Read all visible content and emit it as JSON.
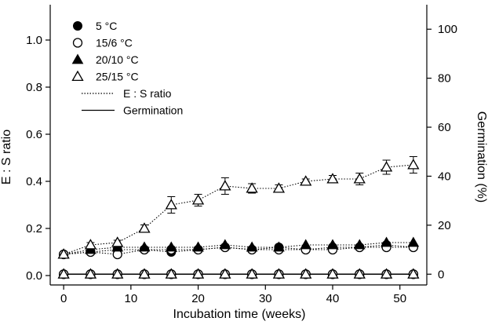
{
  "chart_data": {
    "type": "scatter",
    "xlabel": "Incubation time (weeks)",
    "ylabel": "E : S ratio",
    "y2label": "Germination (%)",
    "xlim": [
      -2,
      54
    ],
    "ylim": [
      -0.04,
      1.15
    ],
    "y2lim": [
      -4.4,
      110
    ],
    "xticks": [
      0,
      10,
      20,
      30,
      40,
      50
    ],
    "yticks": [
      0.0,
      0.2,
      0.4,
      0.6,
      0.8,
      1.0
    ],
    "y2ticks": [
      0,
      20,
      40,
      60,
      80,
      100
    ],
    "grid": false,
    "legend_position": "top-left",
    "legend": [
      {
        "label": "5 °C",
        "marker": "filled-circle"
      },
      {
        "label": "15/6 °C",
        "marker": "open-circle"
      },
      {
        "label": "20/10 °C",
        "marker": "filled-triangle"
      },
      {
        "label": "25/15 °C",
        "marker": "open-triangle"
      },
      {
        "label": "E : S ratio",
        "line": "dotted"
      },
      {
        "label": "Germination",
        "line": "solid"
      }
    ],
    "x": [
      0,
      4,
      8,
      12,
      16,
      20,
      24,
      28,
      32,
      36,
      40,
      44,
      48,
      52
    ],
    "series": [
      {
        "marker": "filled-circle",
        "axis": "left",
        "line": "dotted",
        "values": [
          0.09,
          0.1,
          0.11,
          0.11,
          0.1,
          0.11,
          0.12,
          0.11,
          0.12,
          0.11,
          0.12,
          0.12,
          0.13,
          0.12
        ]
      },
      {
        "marker": "open-circle",
        "axis": "left",
        "line": "dotted",
        "values": [
          0.09,
          0.1,
          0.09,
          0.11,
          0.11,
          0.11,
          0.12,
          0.11,
          0.11,
          0.11,
          0.11,
          0.12,
          0.12,
          0.12
        ]
      },
      {
        "marker": "filled-triangle",
        "axis": "left",
        "line": "dotted",
        "values": [
          0.09,
          0.11,
          0.12,
          0.12,
          0.12,
          0.12,
          0.13,
          0.12,
          0.12,
          0.13,
          0.13,
          0.13,
          0.14,
          0.14
        ]
      },
      {
        "marker": "open-triangle",
        "axis": "left",
        "line": "dotted",
        "values": [
          0.09,
          0.13,
          0.14,
          0.2,
          0.3,
          0.32,
          0.38,
          0.37,
          0.37,
          0.4,
          0.41,
          0.41,
          0.46,
          0.47
        ],
        "errors": [
          0.0,
          0.01,
          0.01,
          0.015,
          0.035,
          0.025,
          0.035,
          0.02,
          0.015,
          0.01,
          0.015,
          0.025,
          0.03,
          0.035
        ]
      },
      {
        "marker": "filled-circle",
        "axis": "right",
        "line": "solid",
        "values": [
          0,
          0,
          0,
          0,
          0,
          0,
          0,
          0,
          0,
          0,
          0,
          0,
          0,
          0
        ]
      },
      {
        "marker": "open-circle",
        "axis": "right",
        "line": "solid",
        "values": [
          0,
          0,
          0,
          0,
          0,
          0,
          0,
          0,
          0,
          0,
          0,
          0,
          0,
          0
        ]
      },
      {
        "marker": "filled-triangle",
        "axis": "right",
        "line": "solid",
        "values": [
          0,
          0,
          0,
          0,
          0,
          0,
          0,
          0,
          0,
          0,
          0,
          0,
          0,
          0
        ]
      },
      {
        "marker": "open-triangle",
        "axis": "right",
        "line": "solid",
        "values": [
          0,
          0,
          0,
          0,
          0,
          0,
          0,
          0,
          0,
          0,
          0,
          0,
          0,
          0
        ]
      }
    ]
  }
}
